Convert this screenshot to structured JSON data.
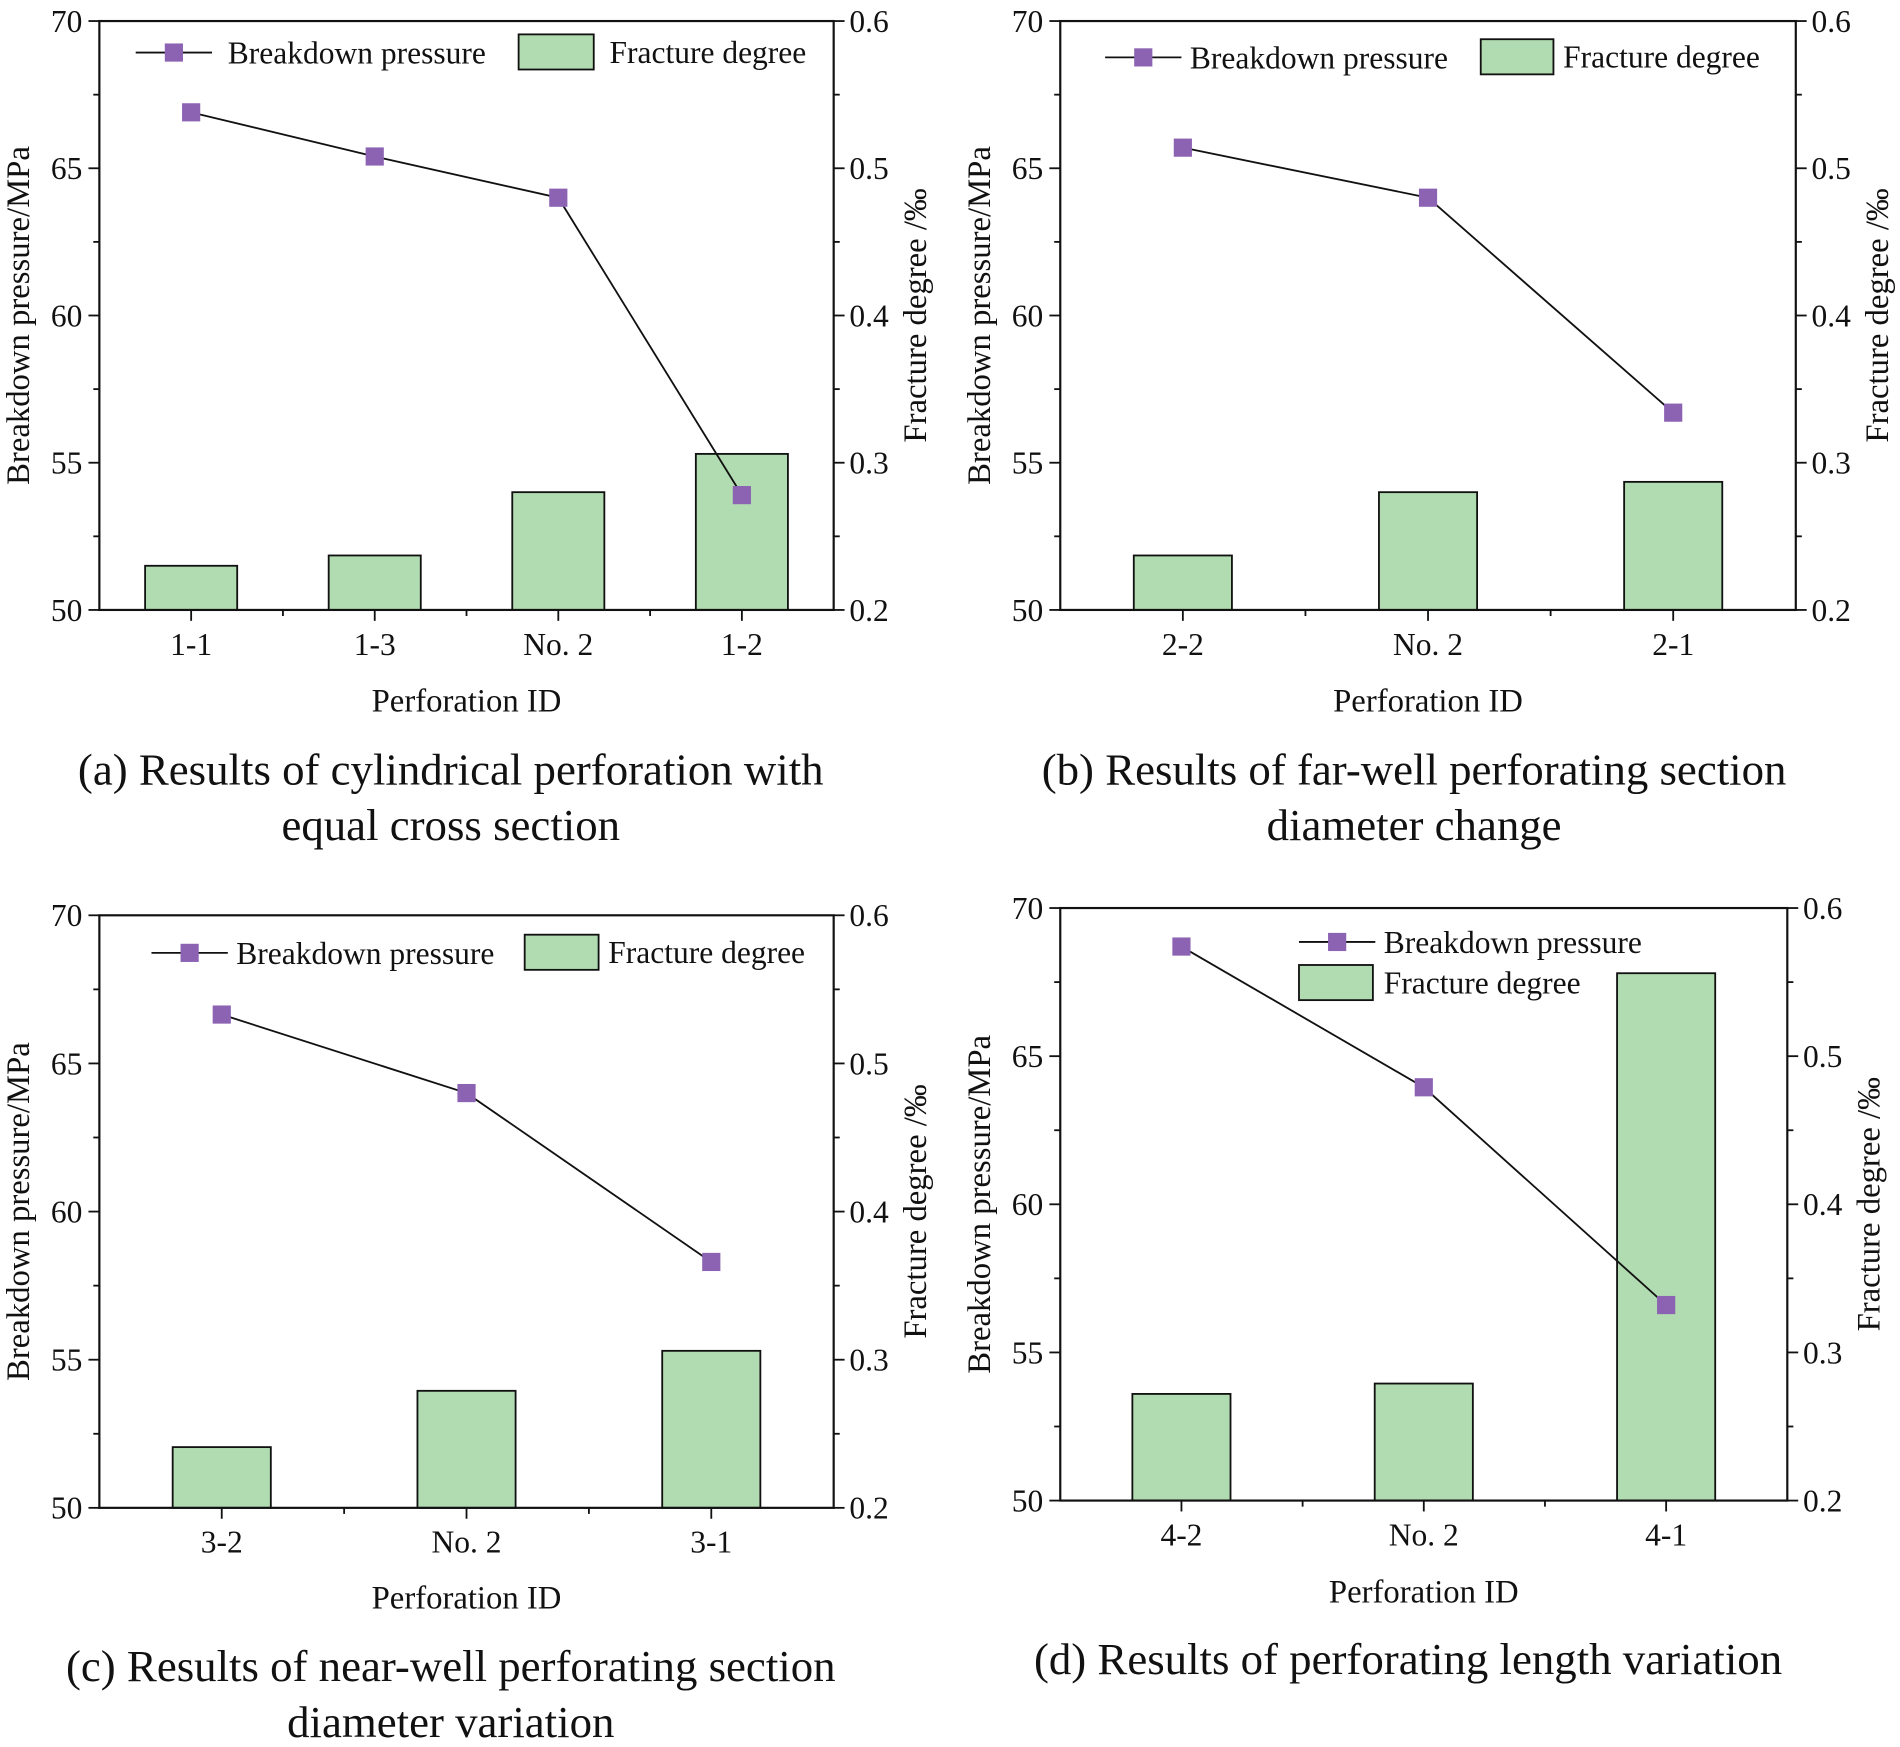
{
  "colors": {
    "bar_fill": "#b1dbb0",
    "bar_stroke": "#111111",
    "marker": "#8c63b3",
    "line": "#111111"
  },
  "chart_data": [
    {
      "type": "bar+line",
      "caption": [
        "(a) Results of cylindrical perforation with",
        "equal cross section"
      ],
      "xlabel": "Perforation ID",
      "ylabel": "Breakdown pressure/MPa",
      "y2label": "Fracture degree /‰",
      "ylim": [
        50,
        70
      ],
      "y2lim": [
        0.2,
        0.6
      ],
      "yticks": [
        50,
        55,
        60,
        65,
        70
      ],
      "y2ticks": [
        "0.2",
        "0.3",
        "0.4",
        "0.5",
        "0.6"
      ],
      "categories": [
        "1-1",
        "1-3",
        "No. 2",
        "1-2"
      ],
      "series": [
        {
          "name": "Breakdown pressure",
          "kind": "line",
          "axis": "left",
          "marker": "square",
          "values": [
            66.9,
            65.4,
            64.0,
            53.9
          ]
        },
        {
          "name": "Fracture degree",
          "kind": "bar",
          "axis": "right",
          "values": [
            0.23,
            0.237,
            0.28,
            0.306
          ]
        }
      ],
      "legend": "top, horizontal"
    },
    {
      "type": "bar+line",
      "caption": [
        "(b) Results of far-well perforating section",
        "diameter change"
      ],
      "xlabel": "Perforation ID",
      "ylabel": "Breakdown pressure/MPa",
      "y2label": "Fracture degree /‰",
      "ylim": [
        50,
        70
      ],
      "y2lim": [
        0.2,
        0.6
      ],
      "yticks": [
        50,
        55,
        60,
        65,
        70
      ],
      "y2ticks": [
        "0.2",
        "0.3",
        "0.4",
        "0.5",
        "0.6"
      ],
      "categories": [
        "2-2",
        "No. 2",
        "2-1"
      ],
      "series": [
        {
          "name": "Breakdown pressure",
          "kind": "line",
          "axis": "left",
          "marker": "square",
          "values": [
            65.7,
            64.0,
            56.7
          ]
        },
        {
          "name": "Fracture degree",
          "kind": "bar",
          "axis": "right",
          "values": [
            0.237,
            0.28,
            0.287
          ]
        }
      ],
      "legend": "top, horizontal"
    },
    {
      "type": "bar+line",
      "caption": [
        "(c) Results of near-well perforating section",
        "diameter variation"
      ],
      "xlabel": "Perforation ID",
      "ylabel": "Breakdown pressure/MPa",
      "y2label": "Fracture degree /‰",
      "ylim": [
        50,
        70
      ],
      "y2lim": [
        0.2,
        0.6
      ],
      "yticks": [
        50,
        55,
        60,
        65,
        70
      ],
      "y2ticks": [
        "0.2",
        "0.3",
        "0.4",
        "0.5",
        "0.6"
      ],
      "categories": [
        "3-2",
        "No. 2",
        "3-1"
      ],
      "series": [
        {
          "name": "Breakdown pressure",
          "kind": "line",
          "axis": "left",
          "marker": "square",
          "values": [
            66.65,
            64.0,
            58.3
          ]
        },
        {
          "name": "Fracture degree",
          "kind": "bar",
          "axis": "right",
          "values": [
            0.241,
            0.279,
            0.306
          ]
        }
      ],
      "legend": "top, horizontal"
    },
    {
      "type": "bar+line",
      "caption": [
        "(d) Results of perforating length variation"
      ],
      "xlabel": "Perforation ID",
      "ylabel": "Breakdown pressure/MPa",
      "y2label": "Fracture degree /‰",
      "ylim": [
        50,
        70
      ],
      "y2lim": [
        0.2,
        0.6
      ],
      "yticks": [
        50,
        55,
        60,
        65,
        70
      ],
      "y2ticks": [
        "0.2",
        "0.3",
        "0.4",
        "0.5",
        "0.6"
      ],
      "categories": [
        "4-2",
        "No. 2",
        "4-1"
      ],
      "series": [
        {
          "name": "Breakdown pressure",
          "kind": "line",
          "axis": "left",
          "marker": "square",
          "values": [
            68.7,
            63.95,
            56.6
          ]
        },
        {
          "name": "Fracture degree",
          "kind": "bar",
          "axis": "right",
          "values": [
            0.272,
            0.279,
            0.556
          ]
        }
      ],
      "legend": "top-center, stacked"
    }
  ]
}
